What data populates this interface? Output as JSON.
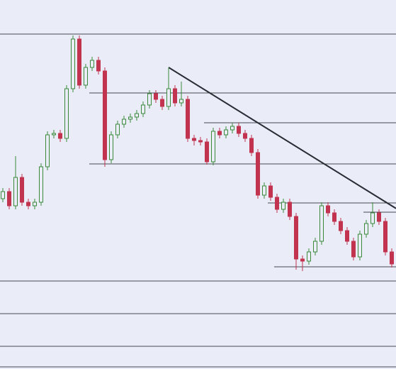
{
  "chart_data": {
    "type": "candlestick",
    "up_color": "#3a8a3a",
    "down_color": "#c23350",
    "line_color": "#2b2b33",
    "ylim": [
      0,
      520
    ],
    "open": [
      240,
      250,
      230,
      270,
      235,
      230,
      235,
      285,
      330,
      332,
      325,
      395,
      465,
      400,
      425,
      435,
      420,
      295,
      330,
      345,
      352,
      355,
      360,
      372,
      388,
      380,
      370,
      395,
      375,
      380,
      325,
      322,
      320,
      292,
      335,
      330,
      337,
      342,
      332,
      325,
      305,
      245,
      258,
      242,
      225,
      235,
      215,
      155,
      152,
      165,
      180,
      230,
      220,
      208,
      195,
      180,
      158,
      190,
      205,
      220,
      208,
      165
    ],
    "high": [
      255,
      255,
      300,
      275,
      240,
      240,
      290,
      335,
      337,
      337,
      400,
      470,
      470,
      430,
      440,
      440,
      425,
      335,
      350,
      357,
      360,
      365,
      377,
      393,
      393,
      385,
      425,
      400,
      405,
      385,
      330,
      327,
      325,
      340,
      340,
      342,
      347,
      347,
      337,
      330,
      310,
      263,
      263,
      247,
      240,
      240,
      220,
      160,
      170,
      185,
      235,
      235,
      225,
      213,
      200,
      185,
      195,
      210,
      235,
      225,
      213,
      170
    ],
    "low": [
      235,
      225,
      225,
      230,
      225,
      225,
      230,
      280,
      325,
      320,
      320,
      390,
      395,
      395,
      420,
      415,
      285,
      290,
      325,
      340,
      347,
      350,
      355,
      367,
      375,
      365,
      365,
      370,
      370,
      320,
      315,
      315,
      288,
      287,
      325,
      325,
      332,
      327,
      320,
      300,
      240,
      240,
      237,
      220,
      220,
      210,
      140,
      138,
      147,
      160,
      175,
      215,
      203,
      190,
      175,
      153,
      153,
      185,
      200,
      203,
      160,
      143
    ],
    "close": [
      250,
      230,
      270,
      235,
      230,
      235,
      285,
      330,
      332,
      325,
      395,
      465,
      400,
      425,
      435,
      420,
      295,
      330,
      345,
      352,
      355,
      360,
      372,
      388,
      380,
      370,
      395,
      375,
      380,
      325,
      322,
      320,
      292,
      335,
      330,
      337,
      342,
      332,
      325,
      305,
      245,
      258,
      242,
      225,
      235,
      215,
      155,
      152,
      165,
      180,
      230,
      220,
      208,
      195,
      180,
      158,
      190,
      205,
      220,
      208,
      165,
      148
    ],
    "levels": [
      {
        "value": 472,
        "from": 0
      },
      {
        "value": 389,
        "from": 14
      },
      {
        "value": 347,
        "from": 32
      },
      {
        "value": 289,
        "from": 14
      },
      {
        "value": 234,
        "from": 42
      },
      {
        "value": 221,
        "from": 57
      },
      {
        "value": 144,
        "from": 43
      },
      {
        "value": 124,
        "from": 0
      },
      {
        "value": 78,
        "from": 0
      },
      {
        "value": 32,
        "from": 0
      },
      {
        "value": 3,
        "from": 0
      }
    ],
    "trendline": {
      "from": 26,
      "from_value": 425,
      "to": 61,
      "to_value": 230
    }
  }
}
